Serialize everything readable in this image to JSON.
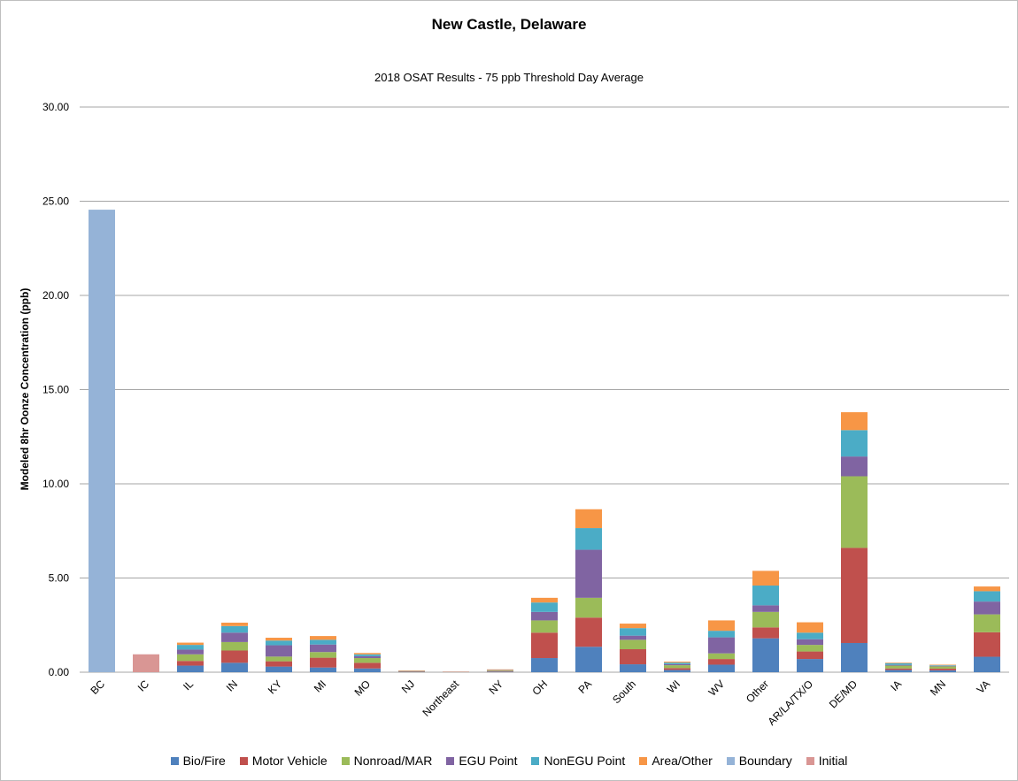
{
  "chart_data": {
    "type": "bar",
    "stacked": true,
    "title": "New Castle, Delaware",
    "subtitle": "2018 OSAT Results - 75 ppb Threshold Day Average",
    "xlabel": "",
    "ylabel": "Modeled 8hr Oonze Concentration (ppb)",
    "ylim": [
      0,
      30
    ],
    "yticks": [
      "0.00",
      "5.00",
      "10.00",
      "15.00",
      "20.00",
      "25.00",
      "30.00"
    ],
    "grid": true,
    "legend_position": "bottom",
    "categories": [
      "BC",
      "IC",
      "IL",
      "IN",
      "KY",
      "MI",
      "MO",
      "NJ",
      "Northeast",
      "NY",
      "OH",
      "PA",
      "South",
      "WI",
      "WV",
      "Other",
      "AR/LA/TX/O",
      "DE/MD",
      "IA",
      "MN",
      "VA"
    ],
    "series": [
      {
        "name": "Bio/Fire",
        "color": "#4f81bd",
        "values": [
          0,
          0,
          0.35,
          0.5,
          0.3,
          0.25,
          0.2,
          0.02,
          0.01,
          0.03,
          0.75,
          1.35,
          0.42,
          0.12,
          0.4,
          1.8,
          0.7,
          1.55,
          0.12,
          0.1,
          0.82
        ]
      },
      {
        "name": "Motor Vehicle",
        "color": "#c0504d",
        "values": [
          0,
          0,
          0.25,
          0.65,
          0.28,
          0.52,
          0.3,
          0.02,
          0.01,
          0.03,
          1.35,
          1.55,
          0.8,
          0.1,
          0.3,
          0.58,
          0.4,
          5.05,
          0.08,
          0.09,
          1.3
        ]
      },
      {
        "name": "Nonroad/MAR",
        "color": "#9bbb59",
        "values": [
          0,
          0,
          0.35,
          0.45,
          0.25,
          0.3,
          0.25,
          0.02,
          0.0,
          0.03,
          0.65,
          1.05,
          0.5,
          0.15,
          0.3,
          0.82,
          0.35,
          3.8,
          0.15,
          0.12,
          0.95
        ]
      },
      {
        "name": "EGU Point",
        "color": "#8064a2",
        "values": [
          0,
          0,
          0.25,
          0.5,
          0.6,
          0.4,
          0.1,
          0.01,
          0.0,
          0.02,
          0.45,
          2.55,
          0.22,
          0.06,
          0.85,
          0.35,
          0.3,
          1.05,
          0.04,
          0.03,
          0.68
        ]
      },
      {
        "name": "NonEGU Point",
        "color": "#4bacc6",
        "values": [
          0,
          0,
          0.25,
          0.35,
          0.25,
          0.25,
          0.1,
          0.0,
          0.0,
          0.01,
          0.5,
          1.15,
          0.4,
          0.08,
          0.35,
          1.05,
          0.35,
          1.4,
          0.09,
          0.03,
          0.55
        ]
      },
      {
        "name": "Area/Other",
        "color": "#f79646",
        "values": [
          0,
          0,
          0.12,
          0.18,
          0.15,
          0.2,
          0.07,
          0.02,
          0.01,
          0.03,
          0.25,
          1.0,
          0.24,
          0.05,
          0.55,
          0.78,
          0.55,
          0.95,
          0.03,
          0.03,
          0.25
        ]
      },
      {
        "name": "Boundary",
        "color": "#95b3d7",
        "values": [
          24.55,
          0,
          0,
          0,
          0,
          0,
          0,
          0,
          0,
          0,
          0,
          0,
          0,
          0,
          0,
          0,
          0,
          0,
          0,
          0,
          0
        ]
      },
      {
        "name": "Initial",
        "color": "#d99694",
        "values": [
          0,
          0.95,
          0,
          0,
          0,
          0,
          0,
          0,
          0,
          0,
          0,
          0,
          0,
          0,
          0,
          0,
          0,
          0,
          0,
          0,
          0
        ]
      }
    ]
  }
}
